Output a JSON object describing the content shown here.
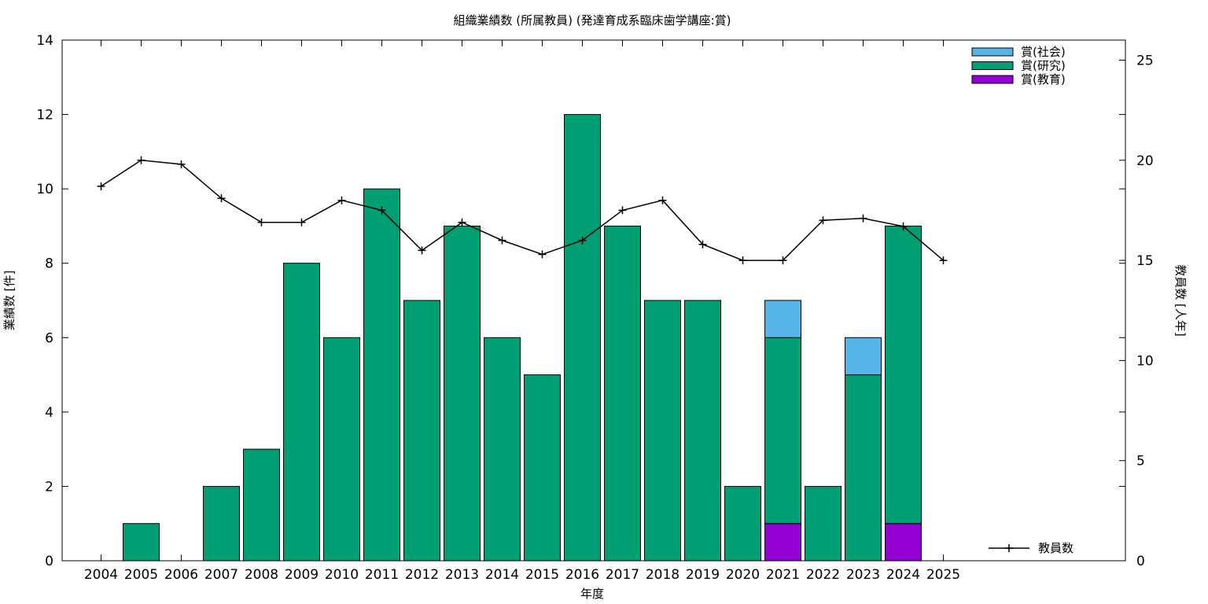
{
  "chart_data": {
    "type": "bar",
    "title": "組織業績数 (所属教員) (発達育成系臨床歯学講座:賞)",
    "xlabel": "年度",
    "ylabel": "業績数 [件]",
    "y2label": "教員数 [人年]",
    "categories": [
      "2004",
      "2005",
      "2006",
      "2007",
      "2008",
      "2009",
      "2010",
      "2011",
      "2012",
      "2013",
      "2014",
      "2015",
      "2016",
      "2017",
      "2018",
      "2019",
      "2020",
      "2021",
      "2022",
      "2023",
      "2024",
      "2025"
    ],
    "ylim": [
      0,
      14
    ],
    "yticks": [
      "0",
      "2",
      "4",
      "6",
      "8",
      "10",
      "12",
      "14"
    ],
    "y2lim": [
      0,
      26
    ],
    "y2ticks": [
      "0",
      "5",
      "10",
      "15",
      "20",
      "25"
    ],
    "stacked": true,
    "series": [
      {
        "name": "賞(教育)",
        "color": "#9400d3",
        "values": [
          0,
          0,
          0,
          0,
          0,
          0,
          0,
          0,
          0,
          0,
          0,
          0,
          0,
          0,
          0,
          0,
          0,
          1,
          0,
          0,
          1,
          0
        ]
      },
      {
        "name": "賞(研究)",
        "color": "#009e73",
        "values": [
          0,
          1,
          0,
          2,
          3,
          8,
          6,
          10,
          7,
          9,
          6,
          5,
          12,
          9,
          7,
          7,
          2,
          5,
          2,
          5,
          8,
          0
        ]
      },
      {
        "name": "賞(社会)",
        "color": "#56b4e9",
        "values": [
          0,
          0,
          0,
          0,
          0,
          0,
          0,
          0,
          0,
          0,
          0,
          0,
          0,
          0,
          0,
          0,
          0,
          1,
          0,
          1,
          0,
          0
        ]
      }
    ],
    "legend_order": [
      "賞(社会)",
      "賞(研究)",
      "賞(教育)"
    ],
    "legend_placement": "top-right",
    "line": {
      "name": "教員数",
      "axis": "y2",
      "color": "#000000",
      "values": [
        18.7,
        20,
        19.8,
        18.1,
        16.9,
        16.9,
        18,
        17.5,
        15.5,
        16.9,
        16,
        15.3,
        16,
        17.5,
        18,
        15.8,
        15,
        15,
        17,
        17.1,
        16.7,
        15
      ],
      "legend_placement": "bottom-right"
    },
    "grid": false
  }
}
